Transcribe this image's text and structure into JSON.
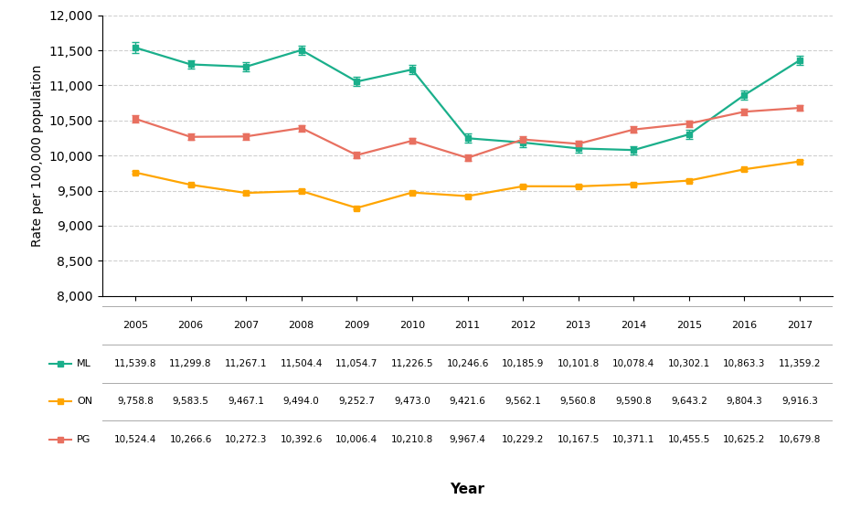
{
  "chart_data": {
    "type": "line",
    "xlabel": "Year",
    "ylabel": "Rate per 100,000 population",
    "x": [
      2005,
      2006,
      2007,
      2008,
      2009,
      2010,
      2011,
      2012,
      2013,
      2014,
      2015,
      2016,
      2017
    ],
    "xlim": [
      2004.4,
      2017.6
    ],
    "xticks": [
      2005,
      2006,
      2007,
      2008,
      2009,
      2010,
      2011,
      2012,
      2013,
      2014,
      2015,
      2016,
      2017
    ],
    "ylim": [
      8000,
      12000
    ],
    "yticks": [
      {
        "value": 8000,
        "label": "8,000"
      },
      {
        "value": 8500,
        "label": "8,500"
      },
      {
        "value": 9000,
        "label": "9,000"
      },
      {
        "value": 9500,
        "label": "9,500"
      },
      {
        "value": 10000,
        "label": "10,000"
      },
      {
        "value": 10500,
        "label": "10,500"
      },
      {
        "value": 11000,
        "label": "11,000"
      },
      {
        "value": 11500,
        "label": "11,500"
      },
      {
        "value": 12000,
        "label": "12,000"
      }
    ],
    "grid": "y",
    "tick_labels": "y",
    "marker": "square",
    "series": [
      {
        "name": "ML",
        "color": "#1AAF8B",
        "values": [
          11539.8,
          11299.8,
          11267.1,
          11504.4,
          11054.7,
          11226.5,
          10246.6,
          10185.9,
          10101.8,
          10078.4,
          10302.1,
          10863.3,
          11359.2
        ],
        "value_labels": [
          "11,539.8",
          "11,299.8",
          "11,267.1",
          "11,504.4",
          "11,054.7",
          "11,226.5",
          "10,246.6",
          "10,185.9",
          "10,101.8",
          "10,078.4",
          "10,302.1",
          "10,863.3",
          "11,359.2"
        ],
        "error": [
          80,
          60,
          60,
          65,
          65,
          65,
          65,
          60,
          60,
          60,
          65,
          70,
          70
        ]
      },
      {
        "name": "ON",
        "color": "#FFA500",
        "values": [
          9758.8,
          9583.5,
          9467.1,
          9494.0,
          9252.7,
          9473.0,
          9421.6,
          9562.1,
          9560.8,
          9590.8,
          9643.2,
          9804.3,
          9916.3
        ],
        "value_labels": [
          "9,758.8",
          "9,583.5",
          "9,467.1",
          "9,494.0",
          "9,252.7",
          "9,473.0",
          "9,421.6",
          "9,562.1",
          "9,560.8",
          "9,590.8",
          "9,643.2",
          "9,804.3",
          "9,916.3"
        ],
        "error": [
          20,
          20,
          20,
          20,
          20,
          20,
          20,
          20,
          20,
          20,
          20,
          20,
          20
        ]
      },
      {
        "name": "PG",
        "color": "#E87060",
        "values": [
          10524.4,
          10266.6,
          10272.3,
          10392.6,
          10006.4,
          10210.8,
          9967.4,
          10229.2,
          10167.5,
          10371.1,
          10455.5,
          10625.2,
          10679.8
        ],
        "value_labels": [
          "10,524.4",
          "10,266.6",
          "10,272.3",
          "10,392.6",
          "10,006.4",
          "10,210.8",
          "9,967.4",
          "10,229.2",
          "10,167.5",
          "10,371.1",
          "10,455.5",
          "10,625.2",
          "10,679.8"
        ],
        "error": [
          50,
          45,
          45,
          45,
          45,
          45,
          45,
          45,
          45,
          45,
          45,
          45,
          45
        ]
      }
    ]
  }
}
